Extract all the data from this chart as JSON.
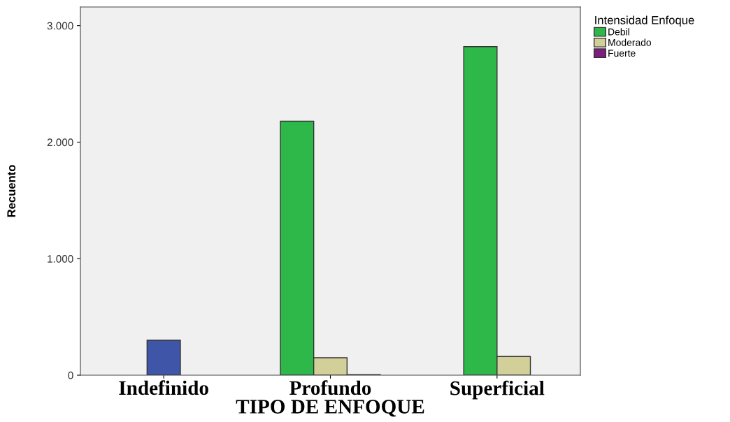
{
  "chart_data": {
    "type": "bar",
    "xlabel": "TIPO DE ENFOQUE",
    "ylabel": "Recuento",
    "legend_title": "Intensidad Enfoque",
    "categories": [
      "Indefinido",
      "Profundo",
      "Superficial"
    ],
    "series": [
      {
        "color": "#3f56a8",
        "values": [
          300,
          null,
          null
        ]
      },
      {
        "name": "Debil",
        "color": "#2fb84a",
        "values": [
          null,
          2180,
          2820
        ]
      },
      {
        "name": "Moderado",
        "color": "#d3cf98",
        "values": [
          null,
          150,
          160
        ]
      },
      {
        "name": "Fuerte",
        "color": "#7a1f7e",
        "values": [
          null,
          5,
          null
        ]
      }
    ],
    "ylim": [
      0,
      3160
    ],
    "yticks": [
      0,
      {
        "value": 1000,
        "label": "1.000"
      },
      {
        "value": 2000,
        "label": "2.000"
      },
      {
        "value": 3000,
        "label": "3.000"
      }
    ],
    "grid": false,
    "legend": "top right"
  }
}
